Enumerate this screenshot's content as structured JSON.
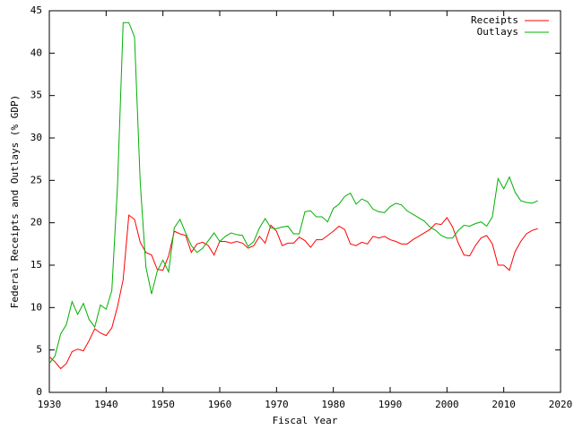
{
  "chart_data": {
    "type": "line",
    "x_label": "Fiscal Year",
    "y_label": "Federal Receipts and Outlays (% GDP)",
    "x": [
      1930,
      1931,
      1932,
      1933,
      1934,
      1935,
      1936,
      1937,
      1938,
      1939,
      1940,
      1941,
      1942,
      1943,
      1944,
      1945,
      1946,
      1947,
      1948,
      1949,
      1950,
      1951,
      1952,
      1953,
      1954,
      1955,
      1956,
      1957,
      1958,
      1959,
      1960,
      1961,
      1962,
      1963,
      1964,
      1965,
      1966,
      1967,
      1968,
      1969,
      1970,
      1971,
      1972,
      1973,
      1974,
      1975,
      1976,
      1977,
      1978,
      1979,
      1980,
      1981,
      1982,
      1983,
      1984,
      1985,
      1986,
      1987,
      1988,
      1989,
      1990,
      1991,
      1992,
      1993,
      1994,
      1995,
      1996,
      1997,
      1998,
      1999,
      2000,
      2001,
      2002,
      2003,
      2004,
      2005,
      2006,
      2007,
      2008,
      2009,
      2010,
      2011,
      2012,
      2013,
      2014,
      2015,
      2016
    ],
    "series": [
      {
        "name": "Receipts",
        "color": "#ff0000",
        "values": [
          4.2,
          3.6,
          2.8,
          3.4,
          4.8,
          5.1,
          4.9,
          6.1,
          7.5,
          7.0,
          6.7,
          7.6,
          10.1,
          13.3,
          20.9,
          20.4,
          17.7,
          16.5,
          16.2,
          14.5,
          14.4,
          16.1,
          19.0,
          18.7,
          18.5,
          16.5,
          17.5,
          17.7,
          17.3,
          16.2,
          17.8,
          17.8,
          17.6,
          17.8,
          17.6,
          17.0,
          17.3,
          18.4,
          17.6,
          19.7,
          19.0,
          17.3,
          17.6,
          17.6,
          18.3,
          17.9,
          17.1,
          18.0,
          18.0,
          18.5,
          19.0,
          19.6,
          19.2,
          17.5,
          17.3,
          17.7,
          17.5,
          18.4,
          18.2,
          18.4,
          18.0,
          17.8,
          17.5,
          17.5,
          18.0,
          18.4,
          18.8,
          19.2,
          19.9,
          19.8,
          20.6,
          19.5,
          17.6,
          16.2,
          16.1,
          17.3,
          18.2,
          18.5,
          17.5,
          15.0,
          15.0,
          14.4,
          16.6,
          17.8,
          18.7,
          19.1,
          19.3
        ]
      },
      {
        "name": "Outlays",
        "color": "#00b000",
        "values": [
          3.4,
          4.3,
          6.9,
          8.0,
          10.7,
          9.2,
          10.5,
          8.6,
          7.7,
          10.3,
          9.8,
          12.0,
          24.3,
          43.6,
          43.6,
          41.9,
          24.8,
          14.8,
          11.6,
          14.3,
          15.6,
          14.2,
          19.4,
          20.4,
          18.8,
          17.3,
          16.5,
          17.0,
          17.9,
          18.8,
          17.8,
          18.4,
          18.8,
          18.6,
          18.5,
          17.2,
          17.8,
          19.4,
          20.5,
          19.4,
          19.3,
          19.5,
          19.6,
          18.7,
          18.7,
          21.3,
          21.4,
          20.7,
          20.7,
          20.1,
          21.7,
          22.2,
          23.1,
          23.5,
          22.2,
          22.8,
          22.5,
          21.6,
          21.3,
          21.2,
          21.9,
          22.3,
          22.1,
          21.4,
          21.0,
          20.6,
          20.2,
          19.5,
          19.1,
          18.5,
          18.2,
          18.2,
          19.1,
          19.7,
          19.6,
          19.9,
          20.1,
          19.6,
          20.7,
          25.2,
          24.0,
          25.4,
          23.6,
          22.6,
          22.4,
          22.3,
          22.6
        ]
      }
    ],
    "xlim": [
      1930,
      2020
    ],
    "xticks": [
      1930,
      1940,
      1950,
      1960,
      1970,
      1980,
      1990,
      2000,
      2010,
      2020
    ],
    "ylim": [
      0,
      45
    ],
    "yticks": [
      0,
      5,
      10,
      15,
      20,
      25,
      30,
      35,
      40,
      45
    ],
    "legend": "top-right"
  }
}
